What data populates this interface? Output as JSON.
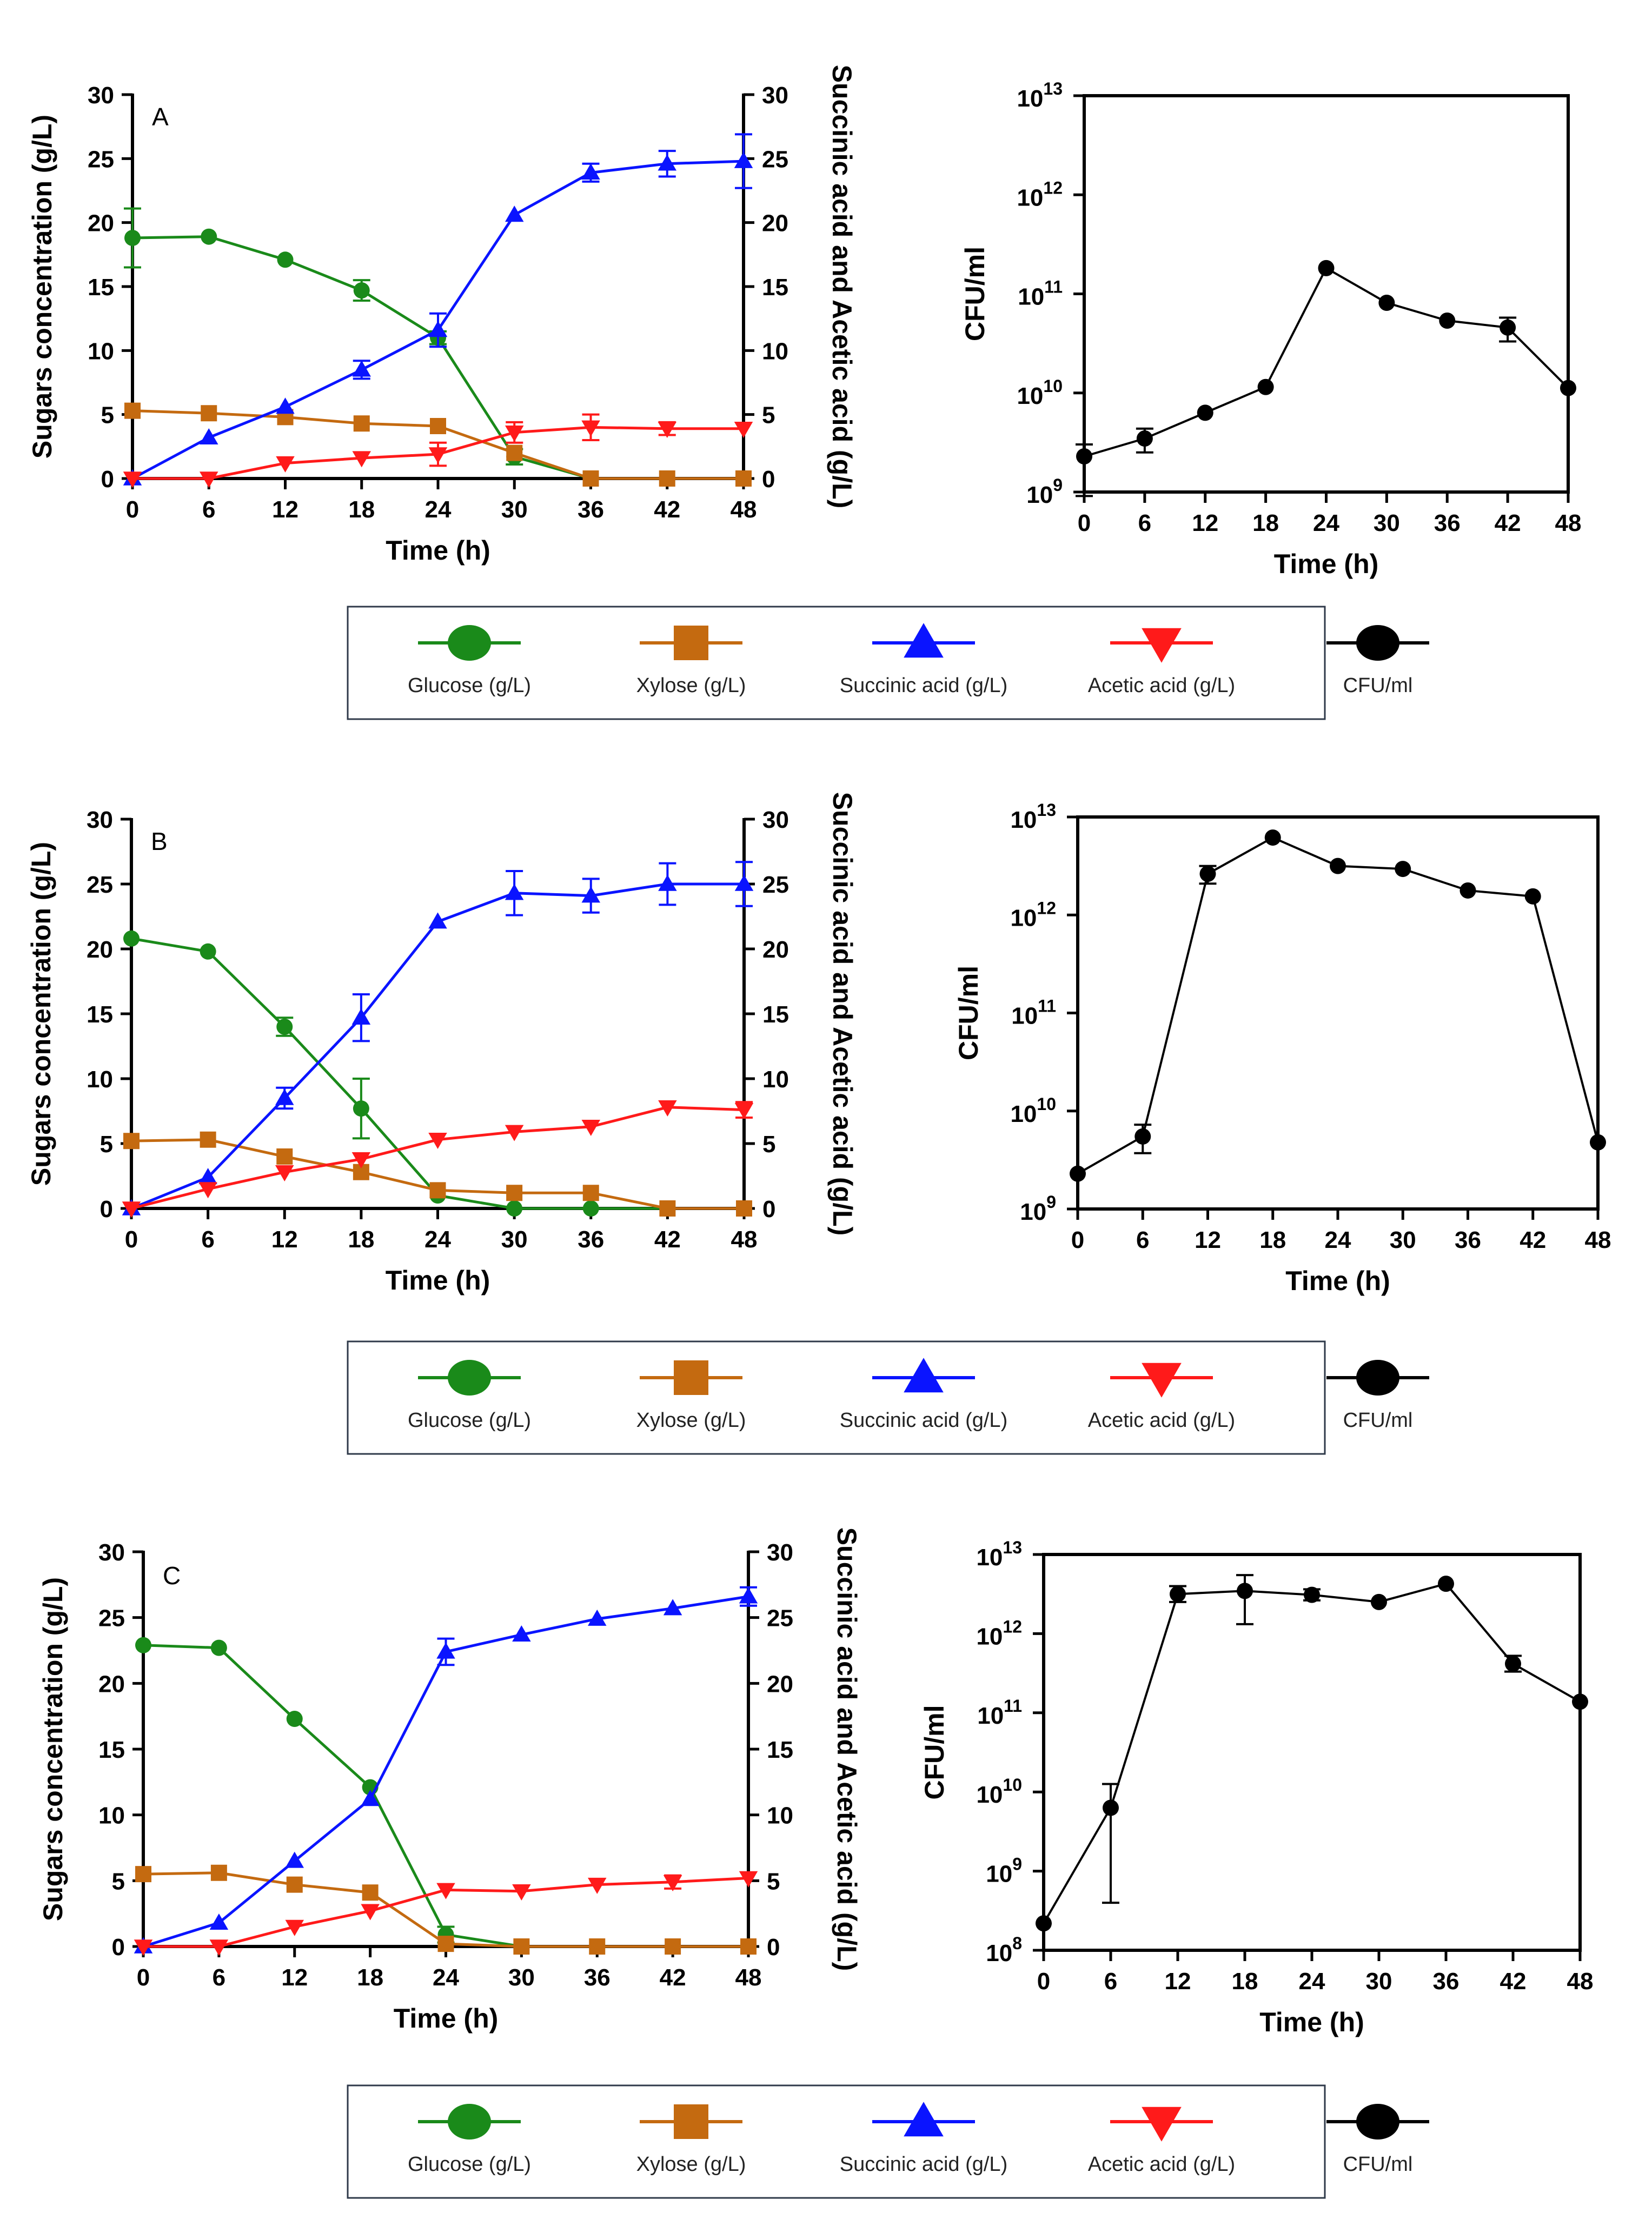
{
  "legend": {
    "items": [
      {
        "label": "Glucose (g/L)",
        "color": "#1a8a1a",
        "marker": "circle"
      },
      {
        "label": "Xylose (g/L)",
        "color": "#c46a10",
        "marker": "square"
      },
      {
        "label": "Succinic acid (g/L)",
        "color": "#0a14ff",
        "marker": "triangle-up"
      },
      {
        "label": "Acetic acid (g/L)",
        "color": "#ff1a1a",
        "marker": "triangle-down"
      },
      {
        "label": "CFU/ml",
        "color": "#000000",
        "marker": "circle"
      }
    ]
  },
  "chart_data": [
    {
      "panel": "A",
      "type": "line",
      "xlabel": "Time (h)",
      "ylabel": "Sugars concentration (g/L)",
      "y2label": "Succinic acid and Acetic acid (g/L)",
      "x": [
        0,
        6,
        12,
        18,
        24,
        30,
        36,
        42,
        48
      ],
      "xlim": [
        0,
        48
      ],
      "ylim": [
        0,
        30
      ],
      "y2lim": [
        0,
        30
      ],
      "xticks": [
        "0",
        "6",
        "12",
        "18",
        "24",
        "30",
        "36",
        "42",
        "48"
      ],
      "yticks": [
        "0",
        "5",
        "10",
        "15",
        "20",
        "25",
        "30"
      ],
      "series": [
        {
          "name": "Glucose (g/L)",
          "axis": "left",
          "color": "#1a8a1a",
          "marker": "circle",
          "values": [
            18.8,
            18.9,
            17.1,
            14.7,
            11.0,
            1.7,
            0,
            0,
            0
          ],
          "errors": [
            2.3,
            0,
            0,
            0.8,
            0.5,
            0.6,
            0,
            0,
            0
          ]
        },
        {
          "name": "Xylose (g/L)",
          "axis": "left",
          "color": "#c46a10",
          "marker": "square",
          "values": [
            5.3,
            5.1,
            4.8,
            4.3,
            4.1,
            2.0,
            0,
            0,
            0
          ],
          "errors": [
            0,
            0,
            0,
            0,
            0,
            0,
            0,
            0,
            0
          ]
        },
        {
          "name": "Succinic acid (g/L)",
          "axis": "right",
          "color": "#0a14ff",
          "marker": "triangle-up",
          "values": [
            0,
            3.2,
            5.6,
            8.5,
            11.6,
            20.6,
            23.9,
            24.6,
            24.8
          ],
          "errors": [
            0,
            0,
            0,
            0.7,
            1.3,
            0,
            0.7,
            1.0,
            2.1
          ]
        },
        {
          "name": "Acetic acid (g/L)",
          "axis": "right",
          "color": "#ff1a1a",
          "marker": "triangle-down",
          "values": [
            0,
            0,
            1.2,
            1.6,
            1.9,
            3.6,
            4.0,
            3.9,
            3.9
          ],
          "errors": [
            0,
            0,
            0,
            0,
            0.9,
            0.8,
            1.0,
            0.5,
            0
          ]
        }
      ]
    },
    {
      "panel": "A-CFU",
      "type": "line",
      "xlabel": "Time (h)",
      "ylabel": "CFU/ml",
      "yscale": "log",
      "x": [
        0,
        6,
        12,
        18,
        24,
        30,
        36,
        42,
        48
      ],
      "xlim": [
        0,
        48
      ],
      "ylim_log10": [
        9,
        13
      ],
      "xticks": [
        "0",
        "6",
        "12",
        "18",
        "24",
        "30",
        "36",
        "42",
        "48"
      ],
      "yticks": [
        {
          "base": "10",
          "exp": "9"
        },
        {
          "base": "10",
          "exp": "10"
        },
        {
          "base": "10",
          "exp": "11"
        },
        {
          "base": "10",
          "exp": "12"
        },
        {
          "base": "10",
          "exp": "13"
        }
      ],
      "series": [
        {
          "name": "CFU/ml",
          "color": "#000000",
          "marker": "circle",
          "log10_values": [
            9.36,
            9.54,
            9.8,
            10.06,
            11.26,
            10.91,
            10.73,
            10.66,
            10.05
          ],
          "log10_err_low": [
            0.4,
            0.14,
            0,
            0,
            0,
            0,
            0,
            0.14,
            0
          ],
          "log10_err_high": [
            0.12,
            0.1,
            0,
            0,
            0,
            0,
            0,
            0.1,
            0
          ]
        }
      ]
    },
    {
      "panel": "B",
      "type": "line",
      "xlabel": "Time (h)",
      "ylabel": "Sugars concentration (g/L)",
      "y2label": "Succinic acid and Acetic acid (g/L)",
      "x": [
        0,
        6,
        12,
        18,
        24,
        30,
        36,
        42,
        48
      ],
      "xlim": [
        0,
        48
      ],
      "ylim": [
        0,
        30
      ],
      "y2lim": [
        0,
        30
      ],
      "xticks": [
        "0",
        "6",
        "12",
        "18",
        "24",
        "30",
        "36",
        "42",
        "48"
      ],
      "yticks": [
        "0",
        "5",
        "10",
        "15",
        "20",
        "25",
        "30"
      ],
      "series": [
        {
          "name": "Glucose (g/L)",
          "axis": "left",
          "color": "#1a8a1a",
          "marker": "circle",
          "values": [
            20.8,
            19.8,
            14.0,
            7.7,
            1.0,
            0,
            0,
            0,
            0
          ],
          "errors": [
            0,
            0,
            0.7,
            2.3,
            0,
            0,
            0,
            0,
            0
          ]
        },
        {
          "name": "Xylose (g/L)",
          "axis": "left",
          "color": "#c46a10",
          "marker": "square",
          "values": [
            5.2,
            5.3,
            4.0,
            2.8,
            1.4,
            1.2,
            1.2,
            0,
            0
          ],
          "errors": [
            0,
            0,
            0,
            0,
            0,
            0,
            0,
            0,
            0
          ]
        },
        {
          "name": "Succinic acid (g/L)",
          "axis": "right",
          "color": "#0a14ff",
          "marker": "triangle-up",
          "values": [
            0,
            2.4,
            8.5,
            14.7,
            22.1,
            24.3,
            24.1,
            25.0,
            25.0
          ],
          "errors": [
            0,
            0,
            0.8,
            1.8,
            0,
            1.7,
            1.3,
            1.6,
            1.7
          ]
        },
        {
          "name": "Acetic acid (g/L)",
          "axis": "right",
          "color": "#ff1a1a",
          "marker": "triangle-down",
          "values": [
            0,
            1.5,
            2.8,
            3.8,
            5.3,
            5.9,
            6.3,
            7.8,
            7.6
          ],
          "errors": [
            0,
            0,
            0,
            0,
            0,
            0,
            0,
            0,
            0.6
          ]
        }
      ]
    },
    {
      "panel": "B-CFU",
      "type": "line",
      "xlabel": "Time (h)",
      "ylabel": "CFU/ml",
      "yscale": "log",
      "x": [
        0,
        6,
        12,
        18,
        24,
        30,
        36,
        42,
        48
      ],
      "xlim": [
        0,
        48
      ],
      "ylim_log10": [
        9,
        13
      ],
      "xticks": [
        "0",
        "6",
        "12",
        "18",
        "24",
        "30",
        "36",
        "42",
        "48"
      ],
      "yticks": [
        {
          "base": "10",
          "exp": "9"
        },
        {
          "base": "10",
          "exp": "10"
        },
        {
          "base": "10",
          "exp": "11"
        },
        {
          "base": "10",
          "exp": "12"
        },
        {
          "base": "10",
          "exp": "13"
        }
      ],
      "series": [
        {
          "name": "CFU/ml",
          "color": "#000000",
          "marker": "circle",
          "log10_values": [
            9.36,
            9.74,
            12.42,
            12.79,
            12.5,
            12.47,
            12.25,
            12.19,
            9.68
          ],
          "log10_err_low": [
            0,
            0.17,
            0.1,
            0,
            0,
            0,
            0,
            0,
            0
          ],
          "log10_err_high": [
            0,
            0.12,
            0.08,
            0,
            0,
            0,
            0,
            0,
            0
          ]
        }
      ]
    },
    {
      "panel": "C",
      "type": "line",
      "xlabel": "Time (h)",
      "ylabel": "Sugars concentration (g/L)",
      "y2label": "Succinic acid and Acetic acid (g/L)",
      "x": [
        0,
        6,
        12,
        18,
        24,
        30,
        36,
        42,
        48
      ],
      "xlim": [
        0,
        48
      ],
      "ylim": [
        0,
        30
      ],
      "y2lim": [
        0,
        30
      ],
      "xticks": [
        "0",
        "6",
        "12",
        "18",
        "24",
        "30",
        "36",
        "42",
        "48"
      ],
      "yticks": [
        "0",
        "5",
        "10",
        "15",
        "20",
        "25",
        "30"
      ],
      "series": [
        {
          "name": "Glucose (g/L)",
          "axis": "left",
          "color": "#1a8a1a",
          "marker": "circle",
          "values": [
            22.9,
            22.7,
            17.3,
            12.1,
            0.9,
            0,
            0,
            0,
            0
          ],
          "errors": [
            0,
            0,
            0,
            0,
            0.6,
            0,
            0,
            0,
            0
          ]
        },
        {
          "name": "Xylose (g/L)",
          "axis": "left",
          "color": "#c46a10",
          "marker": "square",
          "values": [
            5.5,
            5.6,
            4.7,
            4.1,
            0.2,
            0,
            0,
            0,
            0
          ],
          "errors": [
            0,
            0,
            0,
            0,
            0,
            0,
            0,
            0,
            0
          ]
        },
        {
          "name": "Succinic acid (g/L)",
          "axis": "right",
          "color": "#0a14ff",
          "marker": "triangle-up",
          "values": [
            0,
            1.8,
            6.5,
            11.2,
            22.4,
            23.7,
            24.9,
            25.7,
            26.6
          ],
          "errors": [
            0,
            0,
            0,
            0,
            1.0,
            0,
            0,
            0,
            0.7
          ]
        },
        {
          "name": "Acetic acid (g/L)",
          "axis": "right",
          "color": "#ff1a1a",
          "marker": "triangle-down",
          "values": [
            0,
            0,
            1.5,
            2.7,
            4.3,
            4.2,
            4.7,
            4.9,
            5.2
          ],
          "errors": [
            0,
            0,
            0,
            0,
            0,
            0,
            0,
            0.5,
            0
          ]
        }
      ]
    },
    {
      "panel": "C-CFU",
      "type": "line",
      "xlabel": "Time (h)",
      "ylabel": "CFU/ml",
      "yscale": "log",
      "x": [
        0,
        6,
        12,
        18,
        24,
        30,
        36,
        42,
        48
      ],
      "xlim": [
        0,
        48
      ],
      "ylim_log10": [
        8,
        13
      ],
      "xticks": [
        "0",
        "6",
        "12",
        "18",
        "24",
        "30",
        "36",
        "42",
        "48"
      ],
      "yticks": [
        {
          "base": "10",
          "exp": "8"
        },
        {
          "base": "10",
          "exp": "9"
        },
        {
          "base": "10",
          "exp": "10"
        },
        {
          "base": "10",
          "exp": "11"
        },
        {
          "base": "10",
          "exp": "12"
        },
        {
          "base": "10",
          "exp": "13"
        }
      ],
      "series": [
        {
          "name": "CFU/ml",
          "color": "#000000",
          "marker": "circle",
          "log10_values": [
            8.34,
            9.8,
            12.5,
            12.54,
            12.49,
            12.4,
            12.63,
            11.62,
            11.14
          ],
          "log10_err_low": [
            0,
            1.2,
            0.1,
            0.42,
            0.07,
            0,
            0,
            0.1,
            0
          ],
          "log10_err_high": [
            0,
            0.3,
            0.1,
            0.2,
            0.07,
            0,
            0,
            0.1,
            0
          ]
        }
      ]
    }
  ]
}
